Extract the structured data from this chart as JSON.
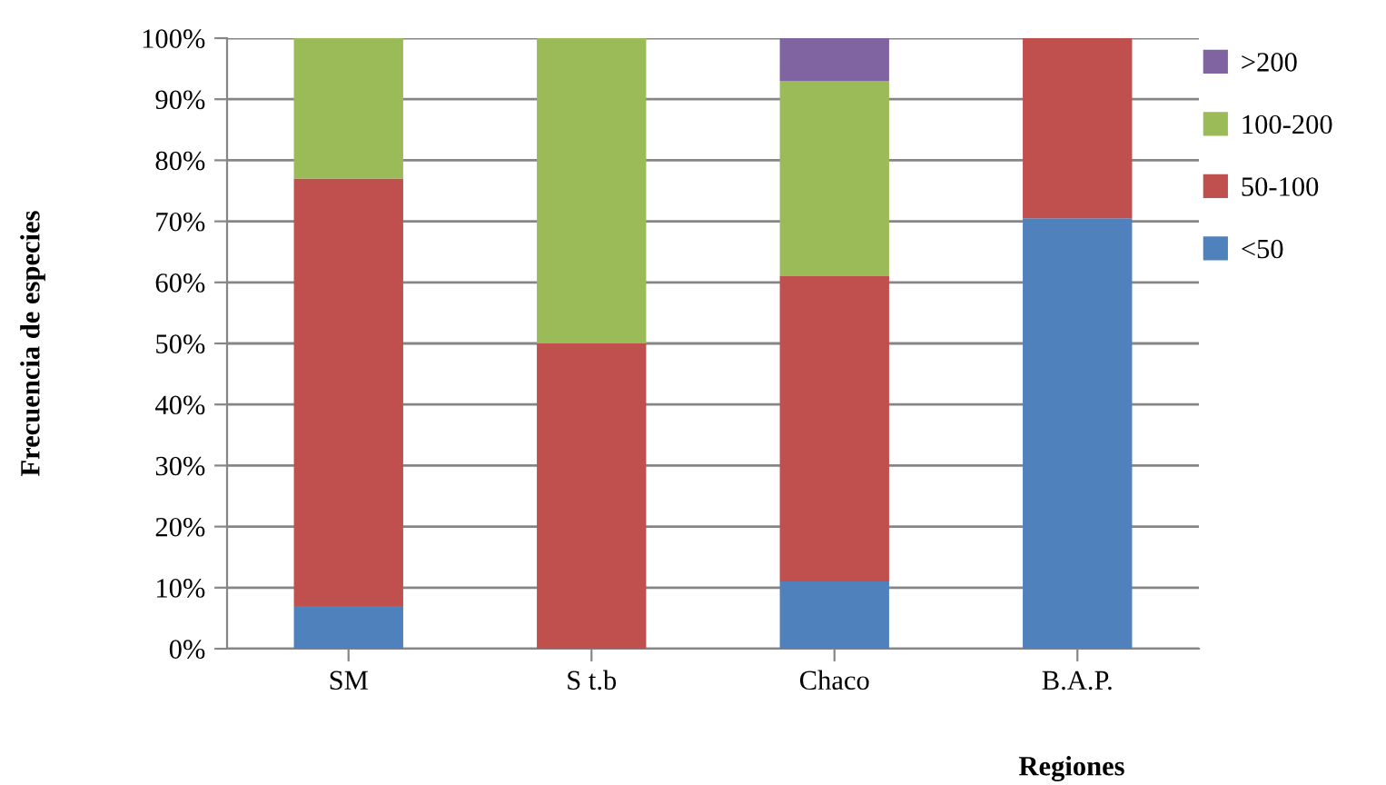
{
  "chart_data": {
    "type": "bar",
    "stacked": true,
    "xlabel": "Regiones",
    "ylabel": "Frecuencia de especies",
    "categories": [
      "SM",
      "S t.b",
      "Chaco",
      "B.A.P."
    ],
    "series": [
      {
        "name": "<50",
        "color": "#4f81bd",
        "values": [
          7,
          0,
          11,
          70.5
        ]
      },
      {
        "name": "50-100",
        "color": "#c0504d",
        "values": [
          70,
          50,
          50,
          29.5
        ]
      },
      {
        "name": "100-200",
        "color": "#9bbb59",
        "values": [
          23,
          50,
          32,
          0
        ]
      },
      {
        "name": ">200",
        "color": "#8064a2",
        "values": [
          0,
          0,
          7,
          0
        ]
      }
    ],
    "ylim": [
      0,
      100
    ],
    "yticks": [
      {
        "value": 0,
        "label": "0%"
      },
      {
        "value": 10,
        "label": "10%"
      },
      {
        "value": 20,
        "label": "20%"
      },
      {
        "value": 30,
        "label": "30%"
      },
      {
        "value": 40,
        "label": "40%"
      },
      {
        "value": 50,
        "label": "50%"
      },
      {
        "value": 60,
        "label": "60%"
      },
      {
        "value": 70,
        "label": "70%"
      },
      {
        "value": 80,
        "label": "80%"
      },
      {
        "value": 90,
        "label": "90%"
      },
      {
        "value": 100,
        "label": "100%"
      }
    ],
    "grid": "y",
    "legend": "right"
  }
}
